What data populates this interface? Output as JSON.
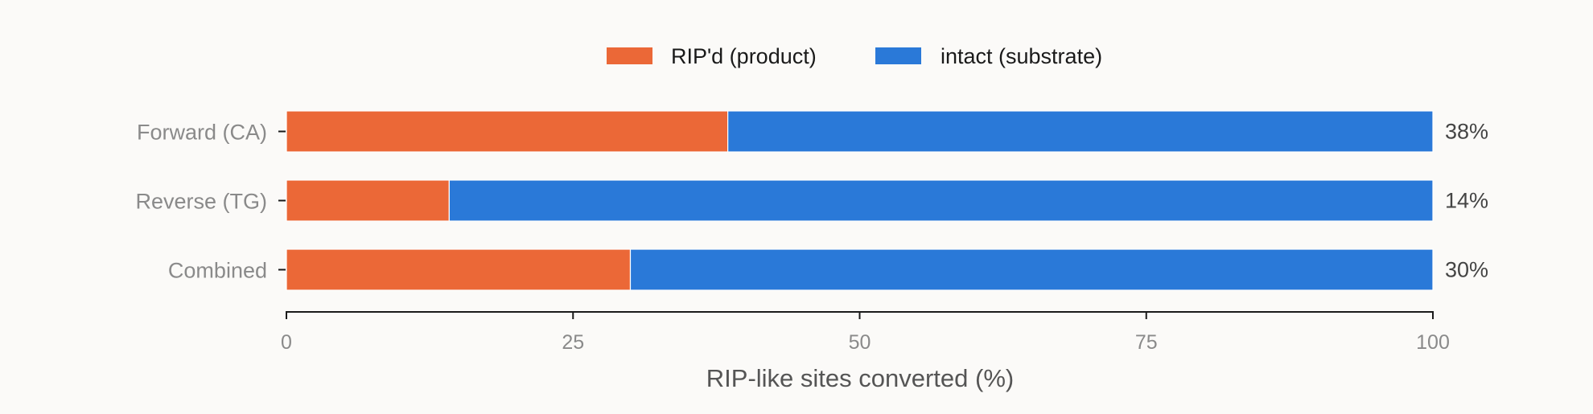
{
  "chart_data": {
    "type": "bar",
    "orientation": "horizontal",
    "stacked": true,
    "categories": [
      "Forward (CA)",
      "Reverse (TG)",
      "Combined"
    ],
    "series": [
      {
        "name": "RIP'd (product)",
        "values": [
          38.5,
          14.2,
          30.0
        ],
        "color": "#eb6837"
      },
      {
        "name": "intact (substrate)",
        "values": [
          61.5,
          85.8,
          70.0
        ],
        "color": "#2a79d8"
      }
    ],
    "data_labels": [
      "38%",
      "14%",
      "30%"
    ],
    "xlabel": "RIP-like sites converted (%)",
    "xlim": [
      0,
      100
    ],
    "xticks": [
      0,
      25,
      50,
      75,
      100
    ],
    "grid": false,
    "legend_position": "top-center"
  }
}
